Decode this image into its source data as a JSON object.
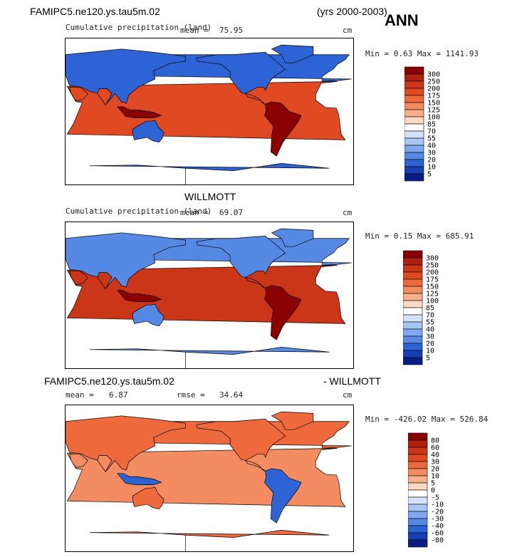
{
  "header": {
    "model_name": "FAMIPC5.ne120.ys.tau5m.02",
    "years": "(yrs 2000-2003)",
    "season": "ANN"
  },
  "panels": [
    {
      "id": "model",
      "title": "",
      "variable_label": "Cumulative precipitation (land)",
      "mean_label": "mean =",
      "mean_value": "75.95",
      "units": "cm",
      "minmax": "Min =   0.63 Max = 1141.93",
      "colorbar": {
        "levels": [
          "300",
          "250",
          "200",
          "175",
          "150",
          "125",
          "100",
          "85",
          "70",
          "55",
          "40",
          "30",
          "20",
          "10",
          "5"
        ],
        "colors": [
          "#8b0000",
          "#b0200f",
          "#cc3618",
          "#e04a23",
          "#ee6a3c",
          "#f48c62",
          "#f8b08c",
          "#fcd9c4",
          "#ffffff",
          "#d4e3fb",
          "#a8c6f5",
          "#7fa8ee",
          "#5689e4",
          "#2e63d6",
          "#163fb3",
          "#081d85"
        ]
      }
    },
    {
      "id": "obs",
      "title": "WILLMOTT",
      "variable_label": "Cumulative precipitation (land)",
      "mean_label": "mean =",
      "mean_value": "69.07",
      "units": "cm",
      "minmax": "Min =   0.15 Max = 685.91",
      "colorbar": {
        "levels": [
          "300",
          "250",
          "200",
          "175",
          "150",
          "125",
          "100",
          "85",
          "70",
          "55",
          "40",
          "30",
          "20",
          "10",
          "5"
        ],
        "colors": [
          "#8b0000",
          "#b0200f",
          "#cc3618",
          "#e04a23",
          "#ee6a3c",
          "#f48c62",
          "#f8b08c",
          "#fcd9c4",
          "#ffffff",
          "#d4e3fb",
          "#a8c6f5",
          "#7fa8ee",
          "#5689e4",
          "#2e63d6",
          "#163fb3",
          "#081d85"
        ]
      }
    },
    {
      "id": "diff",
      "title_left": "FAMIPC5.ne120.ys.tau5m.02",
      "title_right": "- WILLMOTT",
      "mean_label": "mean =",
      "mean_value": "6.87",
      "rmse_label": "rmse =",
      "rmse_value": "34.64",
      "units": "cm",
      "minmax": "Min = -426.02 Max = 526.84",
      "colorbar": {
        "levels": [
          "80",
          "60",
          "40",
          "30",
          "20",
          "10",
          "5",
          "0",
          "-5",
          "-10",
          "-20",
          "-30",
          "-40",
          "-60",
          "-80"
        ],
        "colors": [
          "#8b0000",
          "#b0200f",
          "#cc3618",
          "#e04a23",
          "#ee6a3c",
          "#f48c62",
          "#f8b08c",
          "#fcd9c4",
          "#ffffff",
          "#d4e3fb",
          "#a8c6f5",
          "#7fa8ee",
          "#5689e4",
          "#2e63d6",
          "#163fb3",
          "#081d85"
        ]
      }
    }
  ],
  "chart_data": [
    {
      "type": "heatmap",
      "title": "FAMIPC5.ne120.ys.tau5m.02 (yrs 2000-2003) ANN",
      "subtitle": "Cumulative precipitation (land)",
      "units": "cm",
      "mean": 75.95,
      "min": 0.63,
      "max": 1141.93,
      "contour_levels": [
        5,
        10,
        20,
        30,
        40,
        55,
        70,
        85,
        100,
        125,
        150,
        175,
        200,
        250,
        300
      ],
      "projection": "global lat-lon, Pacific-centered"
    },
    {
      "type": "heatmap",
      "title": "WILLMOTT",
      "subtitle": "Cumulative precipitation (land)",
      "units": "cm",
      "mean": 69.07,
      "min": 0.15,
      "max": 685.91,
      "contour_levels": [
        5,
        10,
        20,
        30,
        40,
        55,
        70,
        85,
        100,
        125,
        150,
        175,
        200,
        250,
        300
      ],
      "projection": "global lat-lon, Pacific-centered"
    },
    {
      "type": "heatmap",
      "title": "FAMIPC5.ne120.ys.tau5m.02 - WILLMOTT",
      "units": "cm",
      "mean": 6.87,
      "rmse": 34.64,
      "min": -426.02,
      "max": 526.84,
      "contour_levels": [
        -80,
        -60,
        -40,
        -30,
        -20,
        -10,
        -5,
        0,
        5,
        10,
        20,
        30,
        40,
        60,
        80
      ],
      "projection": "global lat-lon, Pacific-centered"
    }
  ]
}
